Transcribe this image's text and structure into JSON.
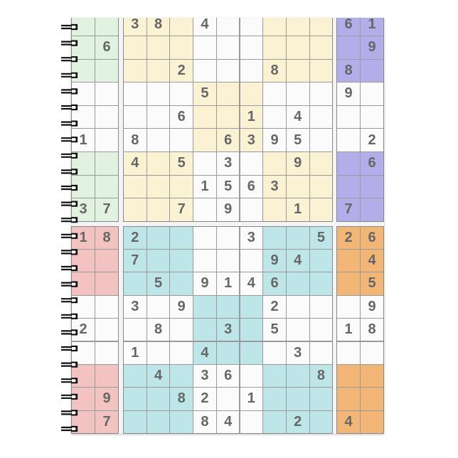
{
  "product": "spiral notebook with sudoku puzzles cover",
  "colors": {
    "digit": "#666666",
    "white_cell": "#fbfbfb",
    "grid_line": "#9a9a9a",
    "spiral": "#111111"
  },
  "puzzles": [
    {
      "position": "top",
      "left_color": "#e2f2e0",
      "main_color": "#fbf2d3",
      "right_color": "#b3aeea",
      "left": [
        [
          "",
          ""
        ],
        [
          "",
          "6"
        ],
        [
          "",
          ""
        ],
        [
          "",
          ""
        ],
        [
          "",
          ""
        ],
        [
          "1",
          ""
        ],
        [
          "",
          ""
        ],
        [
          "",
          ""
        ],
        [
          "3",
          "7"
        ]
      ],
      "main": [
        [
          "3",
          "8",
          "",
          "4",
          "",
          "",
          "",
          "",
          ""
        ],
        [
          "",
          "",
          "",
          "",
          "",
          "",
          "",
          "",
          ""
        ],
        [
          "",
          "",
          "2",
          "",
          "",
          "",
          "8",
          "",
          ""
        ],
        [
          "",
          "",
          "",
          "5",
          "",
          "",
          "",
          "",
          ""
        ],
        [
          "",
          "",
          "6",
          "",
          "",
          "1",
          "",
          "4",
          ""
        ],
        [
          "8",
          "",
          "",
          "",
          "6",
          "3",
          "9",
          "5",
          ""
        ],
        [
          "4",
          "",
          "5",
          "",
          "3",
          "",
          "",
          "9",
          ""
        ],
        [
          "",
          "",
          "",
          "1",
          "5",
          "6",
          "3",
          "",
          ""
        ],
        [
          "",
          "",
          "7",
          "",
          "9",
          "",
          "",
          "1",
          ""
        ]
      ],
      "right": [
        [
          "6",
          "1"
        ],
        [
          "",
          "9"
        ],
        [
          "8",
          ""
        ],
        [
          "9",
          ""
        ],
        [
          "",
          ""
        ],
        [
          "",
          "2"
        ],
        [
          "",
          "6"
        ],
        [
          "",
          ""
        ],
        [
          "7",
          ""
        ]
      ]
    },
    {
      "position": "bottom",
      "left_color": "#f2c3c1",
      "main_color": "#bee6e8",
      "right_color": "#f2b776",
      "left": [
        [
          "1",
          "8"
        ],
        [
          "",
          ""
        ],
        [
          "",
          ""
        ],
        [
          "",
          ""
        ],
        [
          "2",
          ""
        ],
        [
          "",
          ""
        ],
        [
          "",
          ""
        ],
        [
          "",
          "9"
        ],
        [
          "",
          "7"
        ]
      ],
      "main": [
        [
          "2",
          "",
          "",
          "",
          "",
          "3",
          "",
          "",
          "5"
        ],
        [
          "7",
          "",
          "",
          "",
          "",
          "",
          "9",
          "4",
          ""
        ],
        [
          "",
          "5",
          "",
          "9",
          "1",
          "4",
          "6",
          "",
          ""
        ],
        [
          "3",
          "",
          "9",
          "",
          "",
          "",
          "2",
          "",
          ""
        ],
        [
          "",
          "8",
          "",
          "",
          "3",
          "",
          "5",
          "",
          ""
        ],
        [
          "1",
          "",
          "",
          "4",
          "",
          "",
          "",
          "3",
          ""
        ],
        [
          "",
          "4",
          "",
          "3",
          "6",
          "",
          "",
          "",
          "8"
        ],
        [
          "",
          "",
          "8",
          "2",
          "",
          "1",
          "",
          "",
          ""
        ],
        [
          "",
          "",
          "",
          "8",
          "4",
          "",
          "",
          "2",
          ""
        ]
      ],
      "right": [
        [
          "2",
          "6"
        ],
        [
          "",
          "4"
        ],
        [
          "",
          "5"
        ],
        [
          "",
          "9"
        ],
        [
          "1",
          "8"
        ],
        [
          "",
          ""
        ],
        [
          "",
          ""
        ],
        [
          "",
          ""
        ],
        [
          "4",
          ""
        ]
      ]
    }
  ]
}
